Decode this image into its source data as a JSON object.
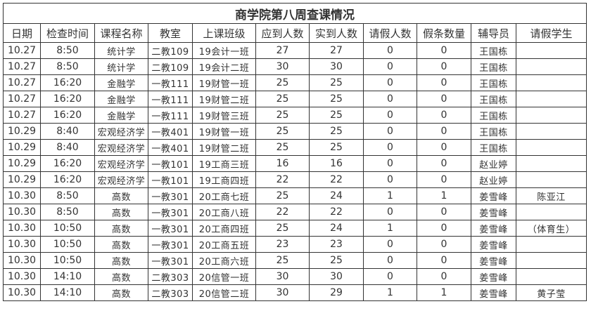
{
  "title": "商学院第八周查课情况",
  "headers": [
    "日期",
    "检查时间",
    "课程名称",
    "教室",
    "上课班级",
    "应到人数",
    "实到人数",
    "请假人数",
    "假条数量",
    "辅导员",
    "请假学生"
  ],
  "rows": [
    [
      "10.27",
      "8:50",
      "统计学",
      "二教109",
      "19会计一班",
      "27",
      "27",
      "0",
      "0",
      "王国栋",
      ""
    ],
    [
      "10.27",
      "8:50",
      "统计学",
      "二教109",
      "19会计二班",
      "30",
      "30",
      "0",
      "0",
      "王国栋",
      ""
    ],
    [
      "10.27",
      "16:20",
      "金融学",
      "一教111",
      "19财管一班",
      "25",
      "25",
      "0",
      "0",
      "王国栋",
      ""
    ],
    [
      "10.27",
      "16:20",
      "金融学",
      "一教111",
      "19财管二班",
      "25",
      "25",
      "0",
      "0",
      "王国栋",
      ""
    ],
    [
      "10.27",
      "16:20",
      "金融学",
      "一教111",
      "19财管三班",
      "25",
      "25",
      "0",
      "0",
      "王国栋",
      ""
    ],
    [
      "10.29",
      "8:40",
      "宏观经济学",
      "一教401",
      "19财管一班",
      "25",
      "25",
      "0",
      "0",
      "王国栋",
      ""
    ],
    [
      "10.29",
      "8:40",
      "宏观经济学",
      "一教401",
      "19财管二班",
      "25",
      "25",
      "0",
      "0",
      "王国栋",
      ""
    ],
    [
      "10.29",
      "16:20",
      "宏观经济学",
      "一教101",
      "19工商三班",
      "16",
      "16",
      "0",
      "0",
      "赵业婷",
      ""
    ],
    [
      "10.29",
      "16:20",
      "宏观经济学",
      "一教101",
      "19工商四班",
      "22",
      "22",
      "0",
      "0",
      "赵业婷",
      ""
    ],
    [
      "10.30",
      "8:50",
      "高数",
      "一教301",
      "20工商七班",
      "25",
      "24",
      "1",
      "1",
      "姜雪峰",
      "陈亚江"
    ],
    [
      "10.30",
      "8:50",
      "高数",
      "一教301",
      "20工商八班",
      "22",
      "22",
      "0",
      "0",
      "姜雪峰",
      ""
    ],
    [
      "10.30",
      "10:50",
      "高数",
      "一教301",
      "20工商四班",
      "25",
      "24",
      "1",
      "0",
      "姜雪峰",
      "（体育生）"
    ],
    [
      "10.30",
      "10:50",
      "高数",
      "一教301",
      "20工商五班",
      "23",
      "23",
      "0",
      "0",
      "姜雪峰",
      ""
    ],
    [
      "10.30",
      "10:50",
      "高数",
      "一教301",
      "20工商六班",
      "25",
      "25",
      "0",
      "0",
      "姜雪峰",
      ""
    ],
    [
      "10.30",
      "14:10",
      "高数",
      "二教303",
      "20信管一班",
      "30",
      "30",
      "0",
      "0",
      "姜雪峰",
      ""
    ],
    [
      "10.30",
      "14:10",
      "高数",
      "二教303",
      "20信管二班",
      "30",
      "29",
      "1",
      "1",
      "姜雪峰",
      "黄子莹"
    ]
  ]
}
